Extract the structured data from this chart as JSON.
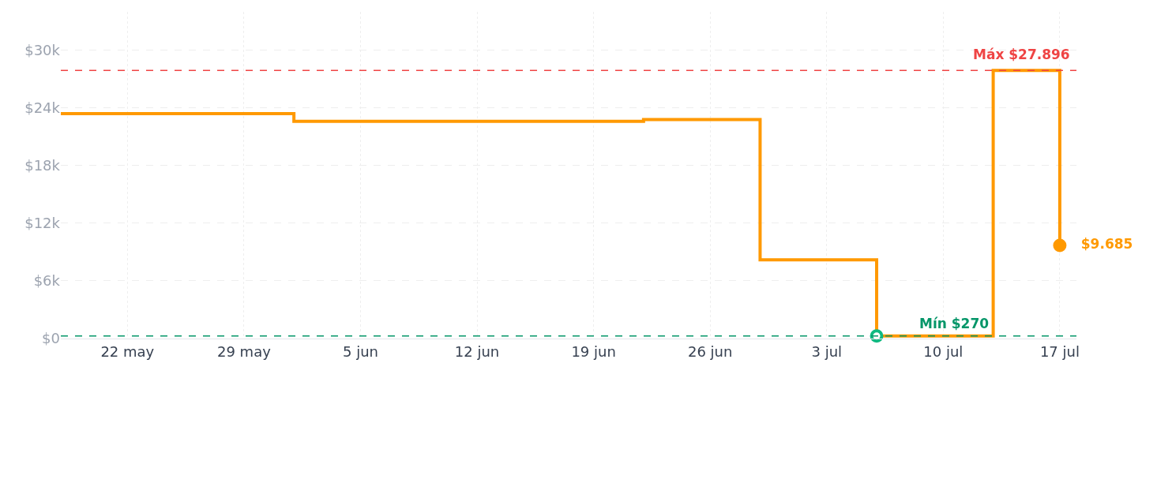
{
  "chart_data": {
    "type": "step",
    "x": [
      "--05-18",
      "--06-01",
      "--06-22",
      "--06-29",
      "--07-06",
      "--07-13",
      "--07-17"
    ],
    "series": [
      {
        "color": "#ff9900",
        "values": [
          23400,
          22600,
          22800,
          8200,
          270,
          27896,
          9685
        ],
        "marker": "none"
      },
      {
        "type": "scatter",
        "color": "#10b981",
        "x": [
          "--07-06"
        ],
        "values": [
          270
        ],
        "marker": "circle"
      },
      {
        "type": "scatter",
        "color": "#ff9900",
        "x": [
          "--07-17"
        ],
        "values": [
          9685
        ],
        "marker": "circle",
        "value_labels": [
          "$9.685"
        ]
      }
    ],
    "xlim": [
      "--05-18",
      "--07-18"
    ],
    "xticks": [
      {
        "value": "--05-22",
        "label": "22 may"
      },
      {
        "value": "--05-29",
        "label": "29 may"
      },
      {
        "value": "--06-05",
        "label": "5 jun"
      },
      {
        "value": "--06-12",
        "label": "12 jun"
      },
      {
        "value": "--06-19",
        "label": "19 jun"
      },
      {
        "value": "--06-26",
        "label": "26 jun"
      },
      {
        "value": "--07-03",
        "label": "3 jul"
      },
      {
        "value": "--07-10",
        "label": "10 jul"
      },
      {
        "value": "--07-17",
        "label": "17 jul"
      }
    ],
    "ylim": [
      0,
      34000
    ],
    "yticks": [
      {
        "value": 0,
        "label": "$0"
      },
      {
        "value": 6000,
        "label": "$6k"
      },
      {
        "value": 12000,
        "label": "$12k"
      },
      {
        "value": 18000,
        "label": "$18k"
      },
      {
        "value": 24000,
        "label": "$24k"
      },
      {
        "value": 30000,
        "label": "$30k"
      }
    ],
    "ref_lines": [
      {
        "axis": "y",
        "value": 27896,
        "label": "Máx $27.896",
        "color": "#ef4444",
        "line_style": "dashed"
      },
      {
        "axis": "y",
        "value": 270,
        "label": "Mín $270",
        "color": "#059669",
        "line_style": "dashed"
      }
    ],
    "grid": true
  }
}
